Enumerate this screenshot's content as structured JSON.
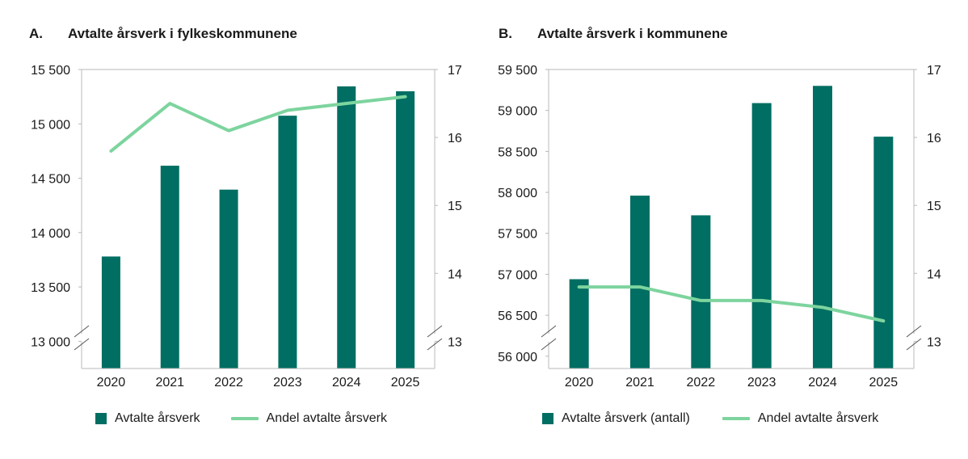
{
  "colors": {
    "bar": "#006e62",
    "line": "#7dd49e",
    "axis": "#b8b8b8",
    "text": "#1a1a1a"
  },
  "chart_data": [
    {
      "letter": "A.",
      "type": "bar",
      "title": "Avtalte årsverk i fylkeskommunene",
      "categories": [
        "2020",
        "2021",
        "2022",
        "2023",
        "2024",
        "2025"
      ],
      "series": [
        {
          "name": "Avtalte årsverk",
          "type": "bar",
          "axis": "left",
          "values": [
            13780,
            14615,
            14395,
            15075,
            15345,
            15300
          ]
        },
        {
          "name": "Andel avtalte årsverk",
          "type": "line",
          "axis": "right",
          "values": [
            15.8,
            16.5,
            16.1,
            16.4,
            16.5,
            16.6
          ]
        }
      ],
      "y_left": {
        "ylim": [
          12750,
          15500
        ],
        "axis_break": true,
        "ticks": [
          13000,
          13500,
          14000,
          14500,
          15000,
          15500
        ],
        "tick_labels": [
          "13 000",
          "13 500",
          "14 000",
          "14 500",
          "15 000",
          "15 500"
        ]
      },
      "y_right": {
        "ylim": [
          12.6,
          17
        ],
        "axis_break": true,
        "ticks": [
          13,
          14,
          15,
          16,
          17
        ],
        "tick_labels": [
          "13",
          "14",
          "15",
          "16",
          "17"
        ]
      },
      "legend": [
        "Avtalte årsverk",
        "Andel avtalte årsverk"
      ],
      "legend_position": "bottom",
      "grid": false
    },
    {
      "letter": "B.",
      "type": "bar",
      "title": "Avtalte årsverk i kommunene",
      "categories": [
        "2020",
        "2021",
        "2022",
        "2023",
        "2024",
        "2025"
      ],
      "series": [
        {
          "name": "Avtalte årsverk (antall)",
          "type": "bar",
          "axis": "left",
          "values": [
            56940,
            57960,
            57720,
            59090,
            59300,
            58680
          ]
        },
        {
          "name": "Andel avtalte årsverk",
          "type": "line",
          "axis": "right",
          "values": [
            13.8,
            13.8,
            13.6,
            13.6,
            13.5,
            13.3
          ]
        }
      ],
      "y_left": {
        "ylim": [
          55850,
          59500
        ],
        "axis_break": true,
        "ticks": [
          56000,
          56500,
          57000,
          57500,
          58000,
          58500,
          59000,
          59500
        ],
        "tick_labels": [
          "56 000",
          "56 500",
          "57 000",
          "57 500",
          "58 000",
          "58 500",
          "59 000",
          "59 500"
        ]
      },
      "y_right": {
        "ylim": [
          12.6,
          17
        ],
        "axis_break": true,
        "ticks": [
          13,
          14,
          15,
          16,
          17
        ],
        "tick_labels": [
          "13",
          "14",
          "15",
          "16",
          "17"
        ]
      },
      "legend": [
        "Avtalte årsverk (antall)",
        "Andel avtalte årsverk"
      ],
      "legend_position": "bottom",
      "grid": false
    }
  ]
}
